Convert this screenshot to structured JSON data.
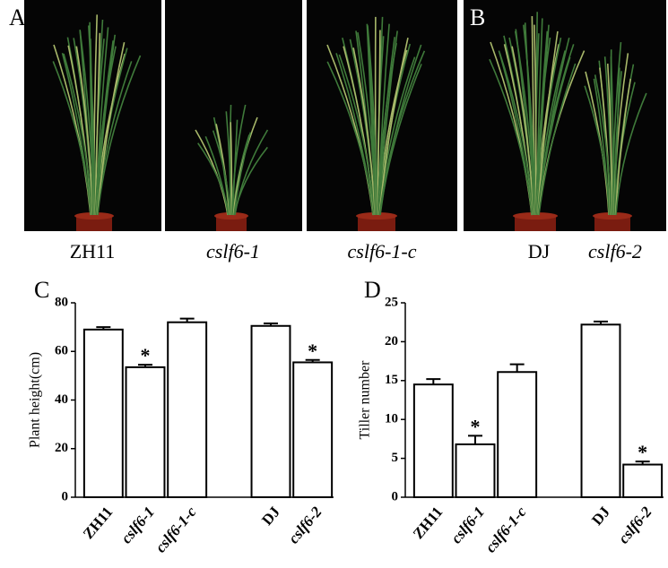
{
  "photo_panels": [
    {
      "label": "A",
      "captions": [
        "ZH11",
        "cslf6-1",
        "cslf6-1-c"
      ]
    },
    {
      "label": "B",
      "captions": [
        "DJ",
        "cslf6-2"
      ]
    }
  ],
  "chart_data": [
    {
      "type": "bar",
      "panel_label": "C",
      "y_label": "Plant height(cm)",
      "categories": [
        "ZH11",
        "cslf6-1",
        "cslf6-1-c",
        null,
        "DJ",
        "cslf6-2"
      ],
      "values": [
        69,
        53.5,
        72,
        null,
        70.5,
        55.5
      ],
      "errors": [
        1,
        1,
        1.5,
        null,
        1,
        1
      ],
      "annotations": [
        {
          "text": "*",
          "category": "cslf6-1"
        },
        {
          "text": "*",
          "category": "cslf6-2"
        }
      ],
      "color": "#ffffff",
      "edge_color": "#000000",
      "ylim": [
        0,
        80
      ],
      "yticks": [
        0,
        20,
        40,
        60,
        80
      ]
    },
    {
      "type": "bar",
      "panel_label": "D",
      "y_label": "Tiller number",
      "categories": [
        "ZH11",
        "cslf6-1",
        "cslf6-1-c",
        null,
        "DJ",
        "cslf6-2"
      ],
      "values": [
        14.5,
        6.8,
        16.1,
        null,
        22.2,
        4.2
      ],
      "errors": [
        0.7,
        1.1,
        1.0,
        null,
        0.4,
        0.4
      ],
      "annotations": [
        {
          "text": "*",
          "category": "cslf6-1"
        },
        {
          "text": "*",
          "category": "cslf6-2"
        }
      ],
      "color": "#ffffff",
      "edge_color": "#000000",
      "ylim": [
        0,
        25
      ],
      "yticks": [
        0,
        5,
        10,
        15,
        20,
        25
      ]
    }
  ]
}
